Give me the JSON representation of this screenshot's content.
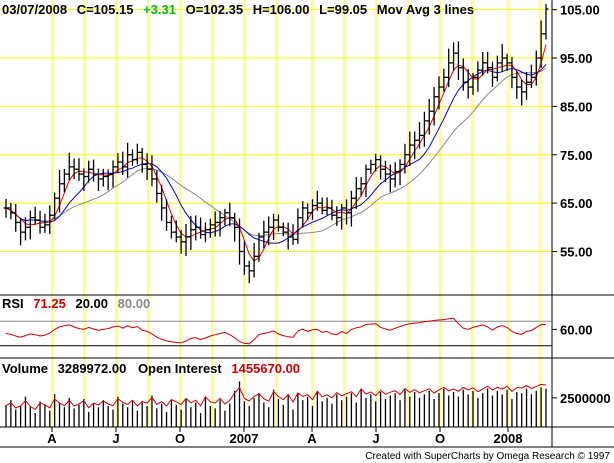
{
  "header": {
    "date": "03/07/2008",
    "close": "C=105.15",
    "change": "+3.31",
    "open": "O=102.35",
    "high": "H=106.00",
    "low": "L=99.05",
    "study": "Mov Avg 3 lines"
  },
  "rsi_header": {
    "label": "RSI",
    "value": "71.25",
    "low": "20.00",
    "high": "80.00"
  },
  "volume_header": {
    "label": "Volume",
    "value": "3289972.00",
    "oi_label": "Open Interest",
    "oi_value": "1455670.00"
  },
  "footer": "Created with SuperCharts by Omega Research © 1997",
  "colors": {
    "background": "#ffffff",
    "grid": "#ffff00",
    "bars": "#000000",
    "ma_fast": "#e00000",
    "ma_mid": "#0000cc",
    "ma_slow": "#888888",
    "rsi_line": "#cc0000",
    "change_text": "#00bb00",
    "value_text": "#cc0000"
  },
  "chart_data": [
    {
      "type": "ohlc",
      "name": "price",
      "ylim": [
        46,
        107
      ],
      "yticks": [
        "105.00",
        "95.00",
        "85.00",
        "75.00",
        "65.00",
        "55.00"
      ],
      "ytick_values": [
        105,
        95,
        85,
        75,
        65,
        55
      ],
      "xticks": [
        "A",
        "J",
        "O",
        "2007",
        "A",
        "J",
        "O",
        "2008"
      ],
      "close": [
        64.0,
        63.0,
        61.0,
        59.0,
        60.0,
        62.0,
        61.5,
        60.0,
        60.5,
        62.5,
        66.0,
        69.0,
        71.0,
        72.5,
        72.0,
        71.0,
        70.5,
        72.0,
        71.0,
        70.0,
        70.5,
        71.0,
        72.5,
        73.5,
        72.5,
        75.0,
        74.0,
        75.5,
        73.0,
        72.0,
        70.0,
        67.0,
        64.0,
        61.0,
        59.0,
        58.0,
        57.0,
        58.0,
        59.5,
        60.0,
        58.5,
        59.5,
        60.5,
        61.0,
        62.0,
        63.0,
        62.0,
        60.0,
        55.0,
        52.0,
        51.0,
        54.0,
        58.0,
        59.0,
        60.0,
        61.5,
        60.0,
        59.0,
        58.0,
        57.5,
        62.0,
        64.0,
        63.0,
        64.5,
        65.0,
        63.5,
        64.0,
        62.5,
        62.0,
        64.0,
        63.0,
        66.0,
        68.0,
        69.0,
        72.0,
        73.0,
        74.0,
        72.0,
        71.0,
        70.0,
        71.5,
        73.0,
        75.0,
        77.0,
        78.0,
        79.0,
        82.0,
        84.0,
        87.0,
        89.0,
        91.0,
        94.0,
        96.0,
        93.0,
        90.0,
        89.0,
        91.0,
        92.5,
        94.0,
        93.0,
        91.0,
        94.0,
        95.0,
        94.0,
        91.0,
        89.0,
        88.0,
        90.0,
        91.0,
        95.0,
        100.0,
        105.15
      ]
    },
    {
      "type": "line",
      "name": "RSI",
      "ylim": [
        0,
        100
      ],
      "yticks": [
        "60.00"
      ],
      "ytick_values": [
        60
      ],
      "series": [
        {
          "name": "RSI",
          "values": [
            50,
            48,
            44,
            41,
            45,
            49,
            47,
            44,
            46,
            51,
            60,
            66,
            69,
            71,
            66,
            62,
            60,
            65,
            61,
            58,
            60,
            62,
            66,
            68,
            63,
            69,
            64,
            67,
            58,
            55,
            49,
            41,
            36,
            32,
            30,
            28,
            27,
            32,
            38,
            40,
            35,
            39,
            44,
            47,
            50,
            53,
            47,
            40,
            30,
            26,
            25,
            35,
            47,
            50,
            53,
            56,
            49,
            45,
            42,
            41,
            56,
            61,
            55,
            59,
            60,
            53,
            55,
            49,
            47,
            55,
            50,
            60,
            64,
            66,
            72,
            73,
            74,
            65,
            61,
            58,
            63,
            67,
            71,
            74,
            75,
            76,
            79,
            80,
            82,
            83,
            84,
            86,
            87,
            74,
            63,
            60,
            65,
            68,
            71,
            66,
            58,
            66,
            69,
            65,
            55,
            50,
            48,
            55,
            57,
            65,
            72,
            71.25
          ]
        }
      ]
    },
    {
      "type": "bar",
      "name": "Volume",
      "yticks": [
        "2500000"
      ],
      "ytick_values": [
        2500000
      ],
      "ylim": [
        0,
        4200000
      ],
      "values": [
        1900000,
        2300000,
        1500000,
        1800000,
        2600000,
        1700000,
        1200000,
        2200000,
        1900000,
        1400000,
        2800000,
        2100000,
        1700000,
        2500000,
        1600000,
        1900000,
        2400000,
        1300000,
        2000000,
        1700000,
        2300000,
        1800000,
        1500000,
        2600000,
        2000000,
        1700000,
        2300000,
        1400000,
        2100000,
        1800000,
        2700000,
        1600000,
        2000000,
        1300000,
        2300000,
        1900000,
        1500000,
        2400000,
        1700000,
        2100000,
        1200000,
        2600000,
        1800000,
        1600000,
        2300000,
        1400000,
        2000000,
        3100000,
        3900000,
        2200000,
        1800000,
        2500000,
        2900000,
        2100000,
        1700000,
        3200000,
        2400000,
        1900000,
        2700000,
        1500000,
        2900000,
        2300000,
        2600000,
        1800000,
        3100000,
        2200000,
        2500000,
        2000000,
        2800000,
        2300000,
        2600000,
        2900000,
        2100000,
        3300000,
        2500000,
        2800000,
        2200000,
        3000000,
        2400000,
        2700000,
        2900000,
        2300000,
        3200000,
        2600000,
        3000000,
        2500000,
        2800000,
        3100000,
        2400000,
        2900000,
        3300000,
        2700000,
        3000000,
        2600000,
        3200000,
        2800000,
        3100000,
        2500000,
        2900000,
        3300000,
        2700000,
        3100000,
        2800000,
        3200000,
        2400000,
        3000000,
        2900000,
        3300000,
        2800000,
        3100000,
        3400000,
        3289972
      ]
    }
  ]
}
